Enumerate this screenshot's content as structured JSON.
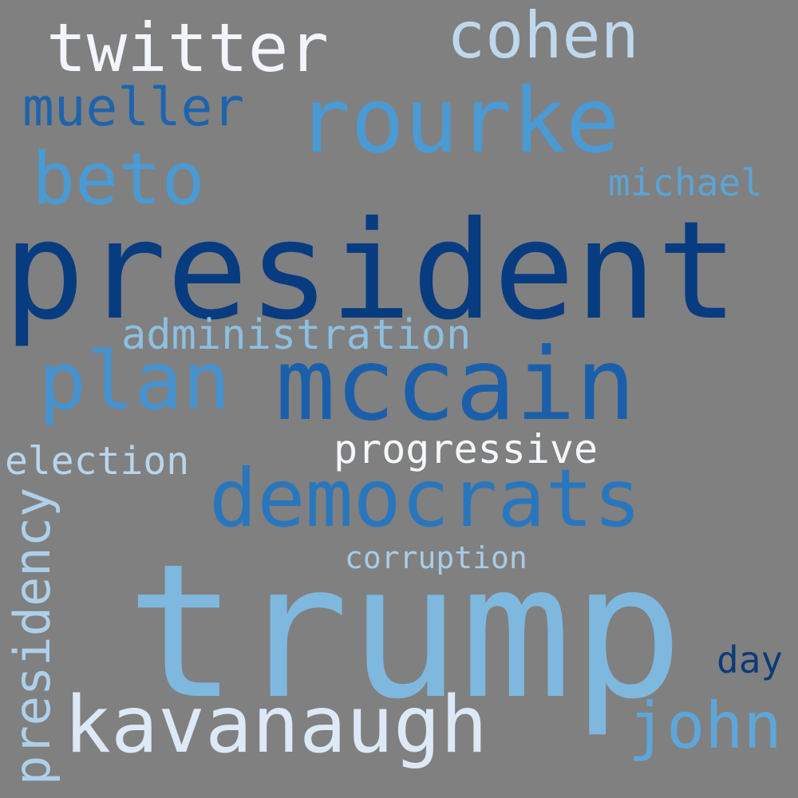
{
  "background": "#808080",
  "words": {
    "twitter": {
      "text": "twitter",
      "color": "#f2f6fc"
    },
    "cohen": {
      "text": "cohen",
      "color": "#c0d8ee"
    },
    "rourke": {
      "text": "rourke",
      "color": "#4a9ad4"
    },
    "mueller": {
      "text": "mueller",
      "color": "#1e64ad"
    },
    "beto": {
      "text": "beto",
      "color": "#4a9ad4"
    },
    "michael": {
      "text": "michael",
      "color": "#5ba4d6"
    },
    "president": {
      "text": "president",
      "color": "#083c80"
    },
    "administration": {
      "text": "administration",
      "color": "#8dbfe0"
    },
    "plan": {
      "text": "plan",
      "color": "#4592ce"
    },
    "mccain": {
      "text": "mccain",
      "color": "#1b5faa"
    },
    "progressive": {
      "text": "progressive",
      "color": "#f4f8fd"
    },
    "election": {
      "text": "election",
      "color": "#b9d5ec"
    },
    "democrats": {
      "text": "democrats",
      "color": "#2a76bd"
    },
    "corruption": {
      "text": "corruption",
      "color": "#a8cce6"
    },
    "trump": {
      "text": "trump",
      "color": "#7fb8de"
    },
    "day": {
      "text": "day",
      "color": "#0b3b78"
    },
    "kavanaugh": {
      "text": "kavanaugh",
      "color": "#dde9f6"
    },
    "john": {
      "text": "john",
      "color": "#5ea6d8"
    },
    "presidency": {
      "text": "presidency",
      "color": "#aed0ea"
    }
  }
}
